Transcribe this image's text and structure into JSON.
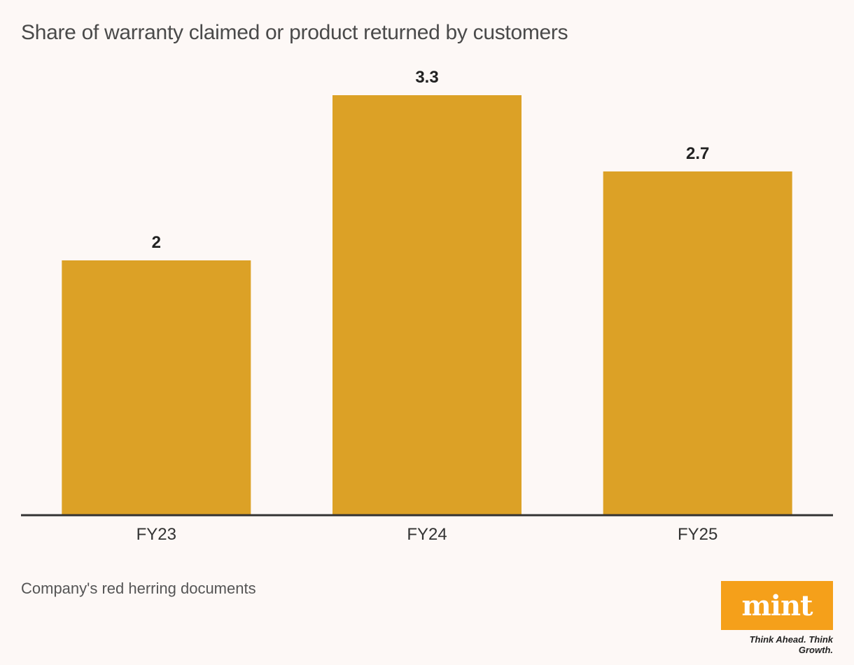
{
  "chart_data": {
    "type": "bar",
    "title": "Share of warranty claimed or product returned by customers",
    "categories": [
      "FY23",
      "FY24",
      "FY25"
    ],
    "values": [
      2,
      3.3,
      2.7
    ],
    "value_labels": [
      "2",
      "3.3",
      "2.7"
    ],
    "ylim": [
      0,
      3.3
    ],
    "grid": false,
    "bar_color": "#dca126",
    "axis_color": "#333333"
  },
  "source": "Company's red herring documents",
  "logo": {
    "name": "mint",
    "tagline": "Think Ahead. Think Growth.",
    "color": "#f5a01a"
  }
}
